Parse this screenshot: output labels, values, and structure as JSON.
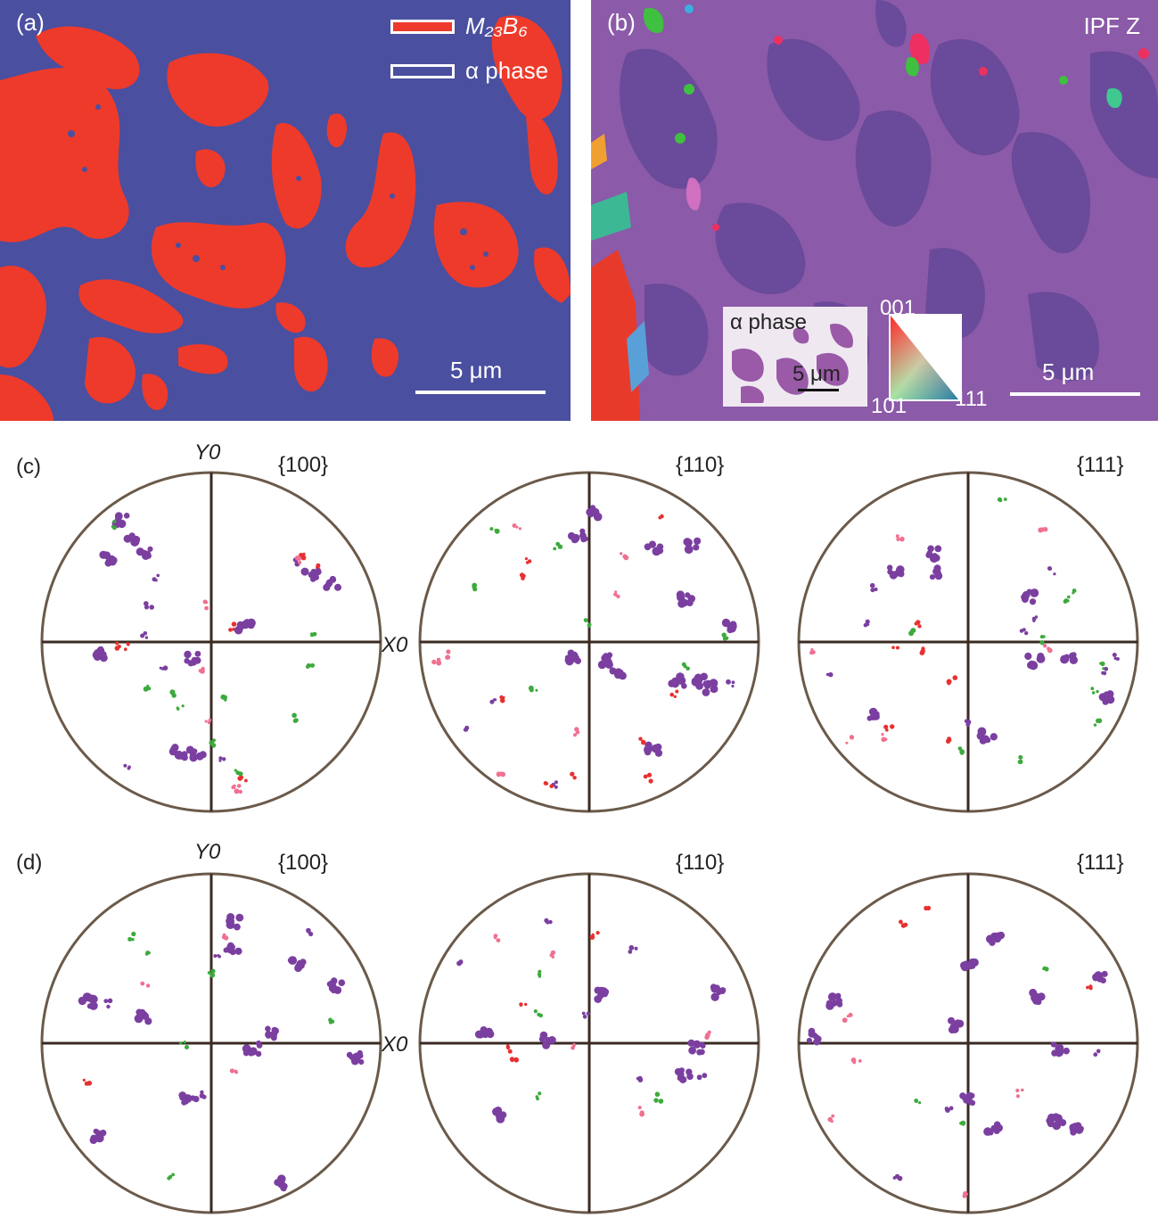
{
  "panels": {
    "a": {
      "label": "(a)",
      "legend": [
        {
          "name": "M₂₃B₆",
          "color": "#ee3a2a"
        },
        {
          "name": "α phase",
          "color": "#4a4fa0"
        }
      ],
      "scale_bar": "5 μm"
    },
    "b": {
      "label": "(b)",
      "title": "IPF Z",
      "inset_title": "α phase",
      "inset_scale": "5 μm",
      "ipf_corners": [
        "001",
        "101",
        "111"
      ],
      "scale_bar": "5 μm"
    },
    "c": {
      "label": "(c)",
      "figures": [
        "{100}",
        "{110}",
        "{111}"
      ],
      "y_axis": "Y0",
      "x_axis": "X0"
    },
    "d": {
      "label": "(d)",
      "figures": [
        "{100}",
        "{110}",
        "{111}"
      ],
      "y_axis": "Y0",
      "x_axis": "X0"
    }
  },
  "colors": {
    "m23b6": "#ee3a2a",
    "alpha_map": "#4a4fa0",
    "ipf_light": "#8b5aa8",
    "ipf_dark": "#6a4a9a",
    "pole_purple": "#7b3fa0",
    "pole_green": "#3caa3c",
    "pole_red": "#e83030",
    "pole_pink": "#f07090"
  }
}
